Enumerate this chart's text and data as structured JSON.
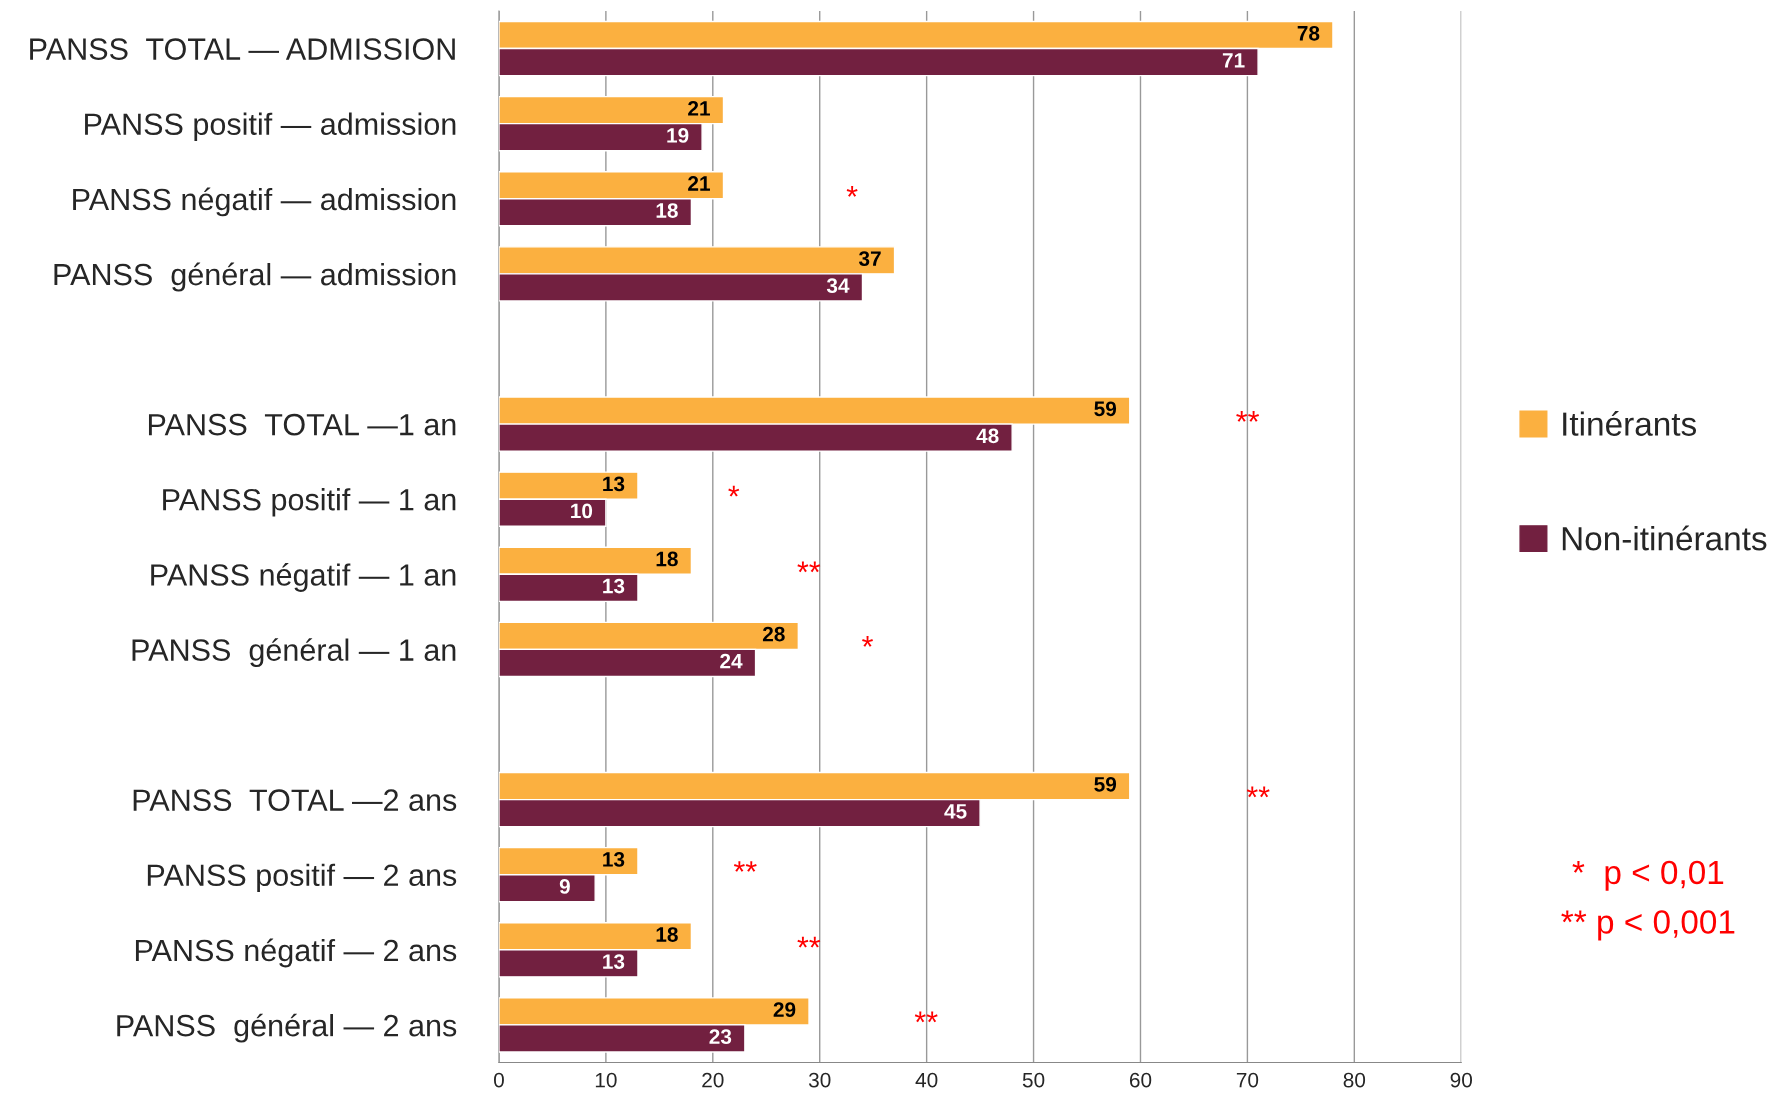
{
  "chart_data": {
    "type": "bar",
    "orientation": "horizontal",
    "categories": [
      "PANSS  TOTAL — ADMISSION",
      "PANSS positif — admission",
      "PANSS négatif — admission",
      "PANSS  général — admission",
      null,
      "PANSS  TOTAL —1 an",
      "PANSS positif — 1 an",
      "PANSS négatif — 1 an",
      "PANSS  général — 1 an",
      null,
      "PANSS  TOTAL —2 ans",
      "PANSS positif — 2 ans",
      "PANSS négatif — 2 ans",
      "PANSS  général — 2 ans"
    ],
    "series": [
      {
        "name": "Itinérants",
        "color": "#fbb040",
        "values": [
          78,
          21,
          21,
          37,
          null,
          59,
          13,
          18,
          28,
          null,
          59,
          13,
          18,
          29
        ]
      },
      {
        "name": "Non-itinérants",
        "color": "#722040",
        "values": [
          71,
          19,
          18,
          34,
          null,
          48,
          10,
          13,
          24,
          null,
          45,
          9,
          13,
          23
        ]
      }
    ],
    "xlim": [
      0,
      90
    ],
    "xticks": [
      0,
      10,
      20,
      30,
      40,
      50,
      60,
      70,
      80,
      90
    ],
    "grid": "x",
    "legend": "right",
    "data_labels": true,
    "annotations": [
      "*",
      "**",
      "*",
      "**",
      "*",
      "**",
      "**",
      "**",
      "**",
      "*  p < 0,01",
      "** p < 0,001"
    ]
  }
}
